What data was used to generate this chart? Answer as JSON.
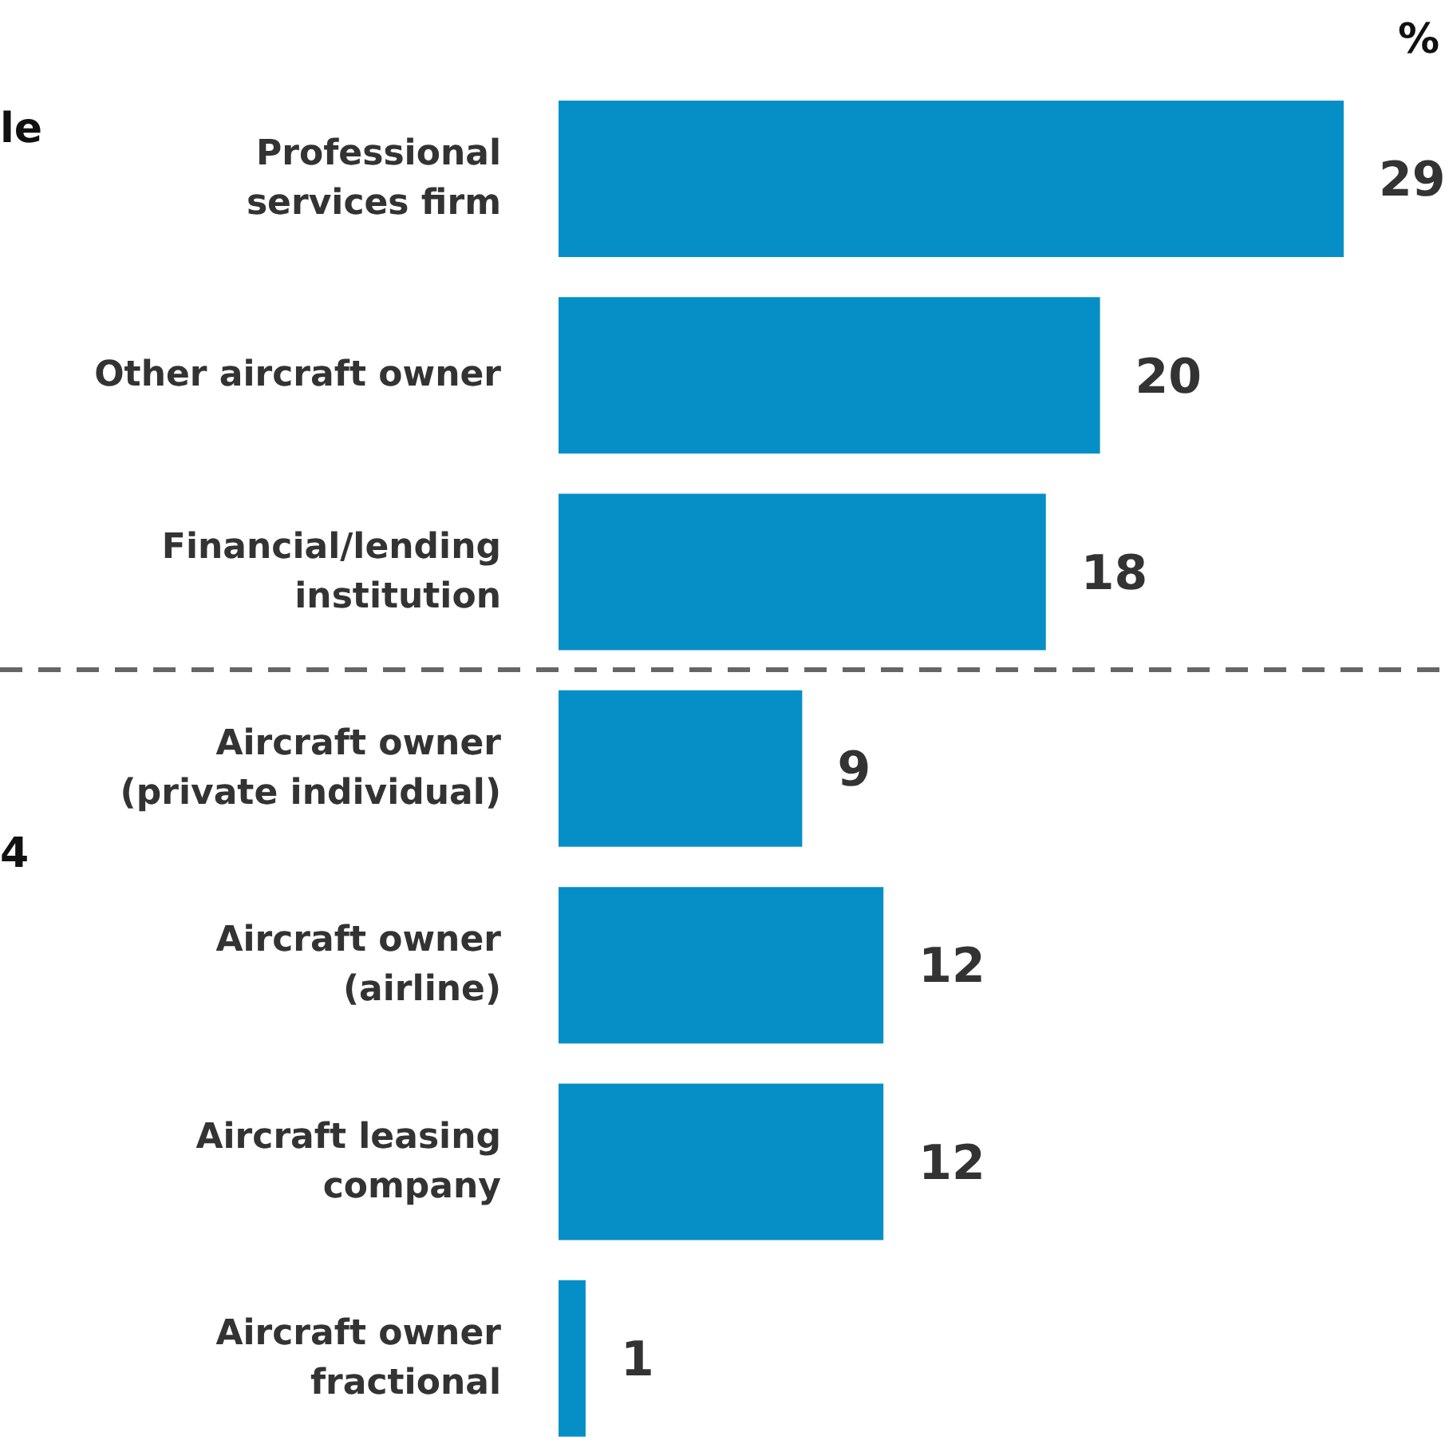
{
  "chart_data": {
    "type": "bar",
    "orientation": "horizontal",
    "categories": [
      "Professional services firm",
      "Other aircraft owner",
      "Financial/lending institution",
      "Aircraft owner (private individual)",
      "Aircraft owner (airline)",
      "Aircraft leasing company",
      "Aircraft owner fractional"
    ],
    "values": [
      29,
      20,
      18,
      9,
      12,
      12,
      1
    ],
    "color": "#058fc6",
    "data_labels": true,
    "annotations": [
      "%",
      "le",
      "4"
    ]
  }
}
